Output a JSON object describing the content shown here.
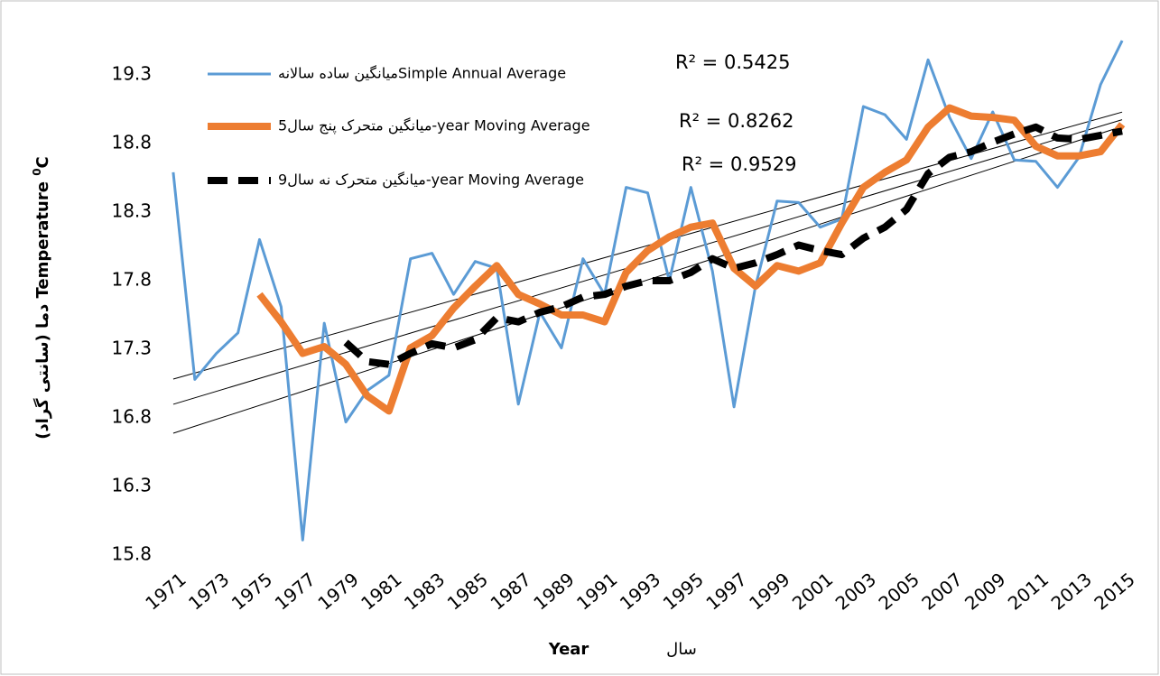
{
  "chart_data": {
    "type": "line",
    "annotations": [
      "R² = 0.5425",
      "R² = 0.8262",
      "R² = 0.9529"
    ],
    "y_label": "دما (سانتی گراد) Temperature ",
    "y_label_sup": "0",
    "y_label_unit": "C",
    "x_label": "Year",
    "x_label_fa": "سال",
    "categories": [
      "1971",
      null,
      "1973",
      null,
      "1975",
      null,
      "1977",
      null,
      "1979",
      null,
      "1981",
      null,
      "1983",
      null,
      "1985",
      null,
      "1987",
      null,
      "1989",
      null,
      "1991",
      null,
      "1993",
      null,
      "1995",
      null,
      "1997",
      null,
      "1999",
      null,
      "2001",
      null,
      "2003",
      null,
      "2005",
      null,
      "2007",
      null,
      "2009",
      null,
      "2011",
      null,
      "2013",
      null,
      "2015"
    ],
    "series": [
      {
        "name": "میانگین ساده سالانهSimple Annual Average",
        "color": "#5b9bd5",
        "width": 3,
        "dash": false,
        "trendline": true,
        "values": [
          18.59,
          17.08,
          17.27,
          17.42,
          18.1,
          17.61,
          15.91,
          17.49,
          16.77,
          17.0,
          17.11,
          17.96,
          18.0,
          17.7,
          17.94,
          17.89,
          16.9,
          17.57,
          17.31,
          17.96,
          17.7,
          18.48,
          18.44,
          17.8,
          18.48,
          17.87,
          16.88,
          17.76,
          18.38,
          18.37,
          18.19,
          18.25,
          19.07,
          19.01,
          18.83,
          19.41,
          18.99,
          18.69,
          19.03,
          18.68,
          18.67,
          18.48,
          18.7,
          19.23,
          19.55
        ]
      },
      {
        "name": "میانگین متحرک پنج سال5-year Moving Average",
        "color": "#ed7d31",
        "width": 8,
        "dash": false,
        "trendline": true,
        "values": [
          null,
          null,
          null,
          null,
          17.7,
          17.5,
          17.27,
          17.32,
          17.19,
          16.96,
          16.85,
          17.31,
          17.4,
          17.6,
          17.76,
          17.91,
          17.7,
          17.63,
          17.55,
          17.55,
          17.5,
          17.86,
          18.02,
          18.12,
          18.19,
          18.22,
          17.89,
          17.76,
          17.91,
          17.87,
          17.93,
          18.22,
          18.48,
          18.59,
          18.68,
          18.92,
          19.06,
          19.0,
          18.99,
          18.97,
          18.78,
          18.71,
          18.71,
          18.74,
          18.94
        ]
      },
      {
        "name": "میانگین متحرک نه سال9-year Moving Average",
        "color": "#000000",
        "width": 8,
        "dash": true,
        "trendline": true,
        "values": [
          null,
          null,
          null,
          null,
          null,
          null,
          null,
          null,
          17.35,
          17.21,
          17.19,
          17.27,
          17.34,
          17.31,
          17.37,
          17.53,
          17.5,
          17.57,
          17.61,
          17.68,
          17.7,
          17.76,
          17.8,
          17.8,
          17.86,
          17.96,
          17.89,
          17.93,
          17.99,
          18.06,
          18.02,
          17.99,
          18.11,
          18.19,
          18.32,
          18.58,
          18.7,
          18.74,
          18.81,
          18.87,
          18.92,
          18.84,
          18.83,
          18.86,
          18.89
        ]
      }
    ],
    "ylim": [
      15.8,
      19.55
    ],
    "yticks": [
      15.8,
      16.3,
      16.8,
      17.3,
      17.8,
      18.3,
      18.8,
      19.3
    ],
    "grid": false,
    "legend": "upper left"
  }
}
